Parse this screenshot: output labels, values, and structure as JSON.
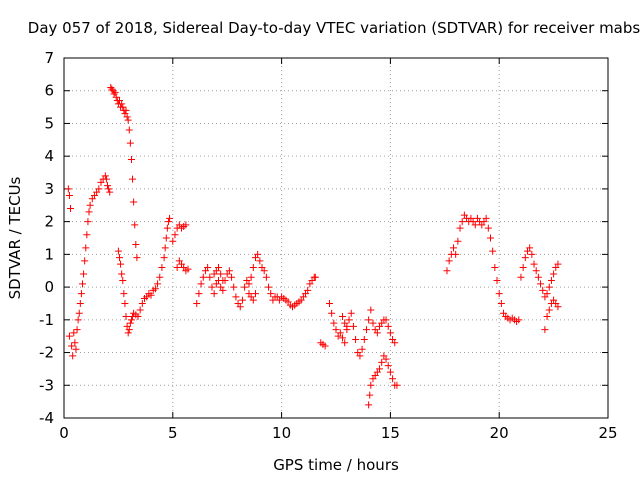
{
  "chart_data": {
    "type": "scatter",
    "title": "Day 057 of 2018, Sidereal Day-to-day VTEC variation (SDTVAR) for receiver mabs",
    "xlabel": "GPS time / hours",
    "ylabel": "SDTVAR / TECUs",
    "xlim": [
      0,
      25
    ],
    "ylim": [
      -4,
      7
    ],
    "xticks": [
      0,
      5,
      10,
      15,
      20,
      25
    ],
    "yticks": [
      -4,
      -3,
      -2,
      -1,
      0,
      1,
      2,
      3,
      4,
      5,
      6,
      7
    ],
    "grid": true,
    "marker": "+",
    "series": [
      {
        "name": "SDTVAR",
        "color": "#ff0000",
        "points": [
          [
            0.2,
            3.0
          ],
          [
            0.25,
            2.8
          ],
          [
            0.3,
            2.4
          ],
          [
            0.25,
            -1.5
          ],
          [
            0.35,
            -1.8
          ],
          [
            0.4,
            -2.1
          ],
          [
            0.45,
            -1.4
          ],
          [
            0.5,
            -1.7
          ],
          [
            0.55,
            -1.9
          ],
          [
            0.6,
            -1.3
          ],
          [
            0.65,
            -1.0
          ],
          [
            0.7,
            -0.8
          ],
          [
            0.75,
            -0.5
          ],
          [
            0.8,
            -0.2
          ],
          [
            0.85,
            0.1
          ],
          [
            0.9,
            0.4
          ],
          [
            0.95,
            0.8
          ],
          [
            1.0,
            1.2
          ],
          [
            1.05,
            1.6
          ],
          [
            1.1,
            2.0
          ],
          [
            1.15,
            2.3
          ],
          [
            1.2,
            2.5
          ],
          [
            1.3,
            2.7
          ],
          [
            1.4,
            2.8
          ],
          [
            1.5,
            2.9
          ],
          [
            1.6,
            3.0
          ],
          [
            1.7,
            3.2
          ],
          [
            1.8,
            3.3
          ],
          [
            1.9,
            3.4
          ],
          [
            1.95,
            3.3
          ],
          [
            2.0,
            3.1
          ],
          [
            2.05,
            3.0
          ],
          [
            2.1,
            2.9
          ],
          [
            2.15,
            6.1
          ],
          [
            2.2,
            6.05
          ],
          [
            2.25,
            6.0
          ],
          [
            2.3,
            5.9
          ],
          [
            2.35,
            5.95
          ],
          [
            2.4,
            5.8
          ],
          [
            2.45,
            5.7
          ],
          [
            2.5,
            5.6
          ],
          [
            2.55,
            5.7
          ],
          [
            2.6,
            5.5
          ],
          [
            2.65,
            5.6
          ],
          [
            2.7,
            5.5
          ],
          [
            2.75,
            5.4
          ],
          [
            2.8,
            5.3
          ],
          [
            2.85,
            5.4
          ],
          [
            2.9,
            5.2
          ],
          [
            2.95,
            5.1
          ],
          [
            3.0,
            4.8
          ],
          [
            3.05,
            4.4
          ],
          [
            3.1,
            3.9
          ],
          [
            3.15,
            3.3
          ],
          [
            3.2,
            2.6
          ],
          [
            3.25,
            1.9
          ],
          [
            3.3,
            1.3
          ],
          [
            3.35,
            0.9
          ],
          [
            2.5,
            1.1
          ],
          [
            2.55,
            0.9
          ],
          [
            2.6,
            0.7
          ],
          [
            2.65,
            0.4
          ],
          [
            2.7,
            0.2
          ],
          [
            2.75,
            -0.2
          ],
          [
            2.8,
            -0.5
          ],
          [
            2.85,
            -0.9
          ],
          [
            2.9,
            -1.2
          ],
          [
            2.95,
            -1.4
          ],
          [
            3.0,
            -1.3
          ],
          [
            3.05,
            -1.1
          ],
          [
            3.1,
            -1.0
          ],
          [
            3.15,
            -0.9
          ],
          [
            3.2,
            -0.8
          ],
          [
            3.3,
            -0.85
          ],
          [
            3.4,
            -0.9
          ],
          [
            3.5,
            -0.7
          ],
          [
            3.6,
            -0.5
          ],
          [
            3.7,
            -0.35
          ],
          [
            3.8,
            -0.3
          ],
          [
            3.9,
            -0.2
          ],
          [
            4.0,
            -0.25
          ],
          [
            4.1,
            -0.1
          ],
          [
            4.2,
            -0.05
          ],
          [
            4.3,
            0.1
          ],
          [
            4.4,
            0.3
          ],
          [
            4.5,
            0.6
          ],
          [
            4.6,
            0.9
          ],
          [
            4.65,
            1.2
          ],
          [
            4.7,
            1.5
          ],
          [
            4.75,
            1.8
          ],
          [
            4.8,
            2.0
          ],
          [
            4.85,
            2.1
          ],
          [
            5.0,
            1.4
          ],
          [
            5.1,
            1.6
          ],
          [
            5.2,
            1.8
          ],
          [
            5.3,
            1.9
          ],
          [
            5.4,
            1.8
          ],
          [
            5.5,
            1.85
          ],
          [
            5.6,
            1.9
          ],
          [
            5.2,
            0.6
          ],
          [
            5.3,
            0.8
          ],
          [
            5.4,
            0.7
          ],
          [
            5.5,
            0.6
          ],
          [
            5.6,
            0.5
          ],
          [
            5.7,
            0.55
          ],
          [
            6.1,
            -0.5
          ],
          [
            6.2,
            -0.2
          ],
          [
            6.3,
            0.1
          ],
          [
            6.4,
            0.3
          ],
          [
            6.5,
            0.5
          ],
          [
            6.6,
            0.6
          ],
          [
            6.7,
            0.3
          ],
          [
            6.8,
            0.0
          ],
          [
            6.9,
            -0.2
          ],
          [
            7.0,
            0.1
          ],
          [
            7.1,
            0.2
          ],
          [
            7.2,
            0.0
          ],
          [
            7.3,
            -0.1
          ],
          [
            7.4,
            0.2
          ],
          [
            7.5,
            0.4
          ],
          [
            7.6,
            0.5
          ],
          [
            7.7,
            0.3
          ],
          [
            7.8,
            0.0
          ],
          [
            7.9,
            -0.3
          ],
          [
            8.0,
            -0.5
          ],
          [
            8.1,
            -0.6
          ],
          [
            8.2,
            -0.4
          ],
          [
            8.3,
            0.0
          ],
          [
            8.4,
            0.2
          ],
          [
            8.5,
            0.1
          ],
          [
            8.6,
            0.3
          ],
          [
            8.7,
            0.6
          ],
          [
            8.8,
            0.9
          ],
          [
            8.9,
            1.0
          ],
          [
            9.0,
            0.8
          ],
          [
            9.1,
            0.6
          ],
          [
            9.2,
            0.5
          ],
          [
            9.3,
            0.3
          ],
          [
            9.4,
            0.0
          ],
          [
            9.5,
            -0.2
          ],
          [
            9.6,
            -0.4
          ],
          [
            9.7,
            -0.3
          ],
          [
            9.8,
            -0.3
          ],
          [
            9.9,
            -0.4
          ],
          [
            10.0,
            -0.3
          ],
          [
            10.1,
            -0.35
          ],
          [
            10.2,
            -0.4
          ],
          [
            10.3,
            -0.45
          ],
          [
            10.4,
            -0.55
          ],
          [
            10.5,
            -0.6
          ],
          [
            10.6,
            -0.55
          ],
          [
            10.7,
            -0.5
          ],
          [
            10.8,
            -0.45
          ],
          [
            10.9,
            -0.4
          ],
          [
            11.0,
            -0.3
          ],
          [
            11.1,
            -0.2
          ],
          [
            11.2,
            -0.1
          ],
          [
            11.3,
            0.1
          ],
          [
            11.4,
            0.2
          ],
          [
            11.5,
            0.3
          ],
          [
            11.55,
            0.3
          ],
          [
            6.9,
            0.4
          ],
          [
            7.0,
            0.5
          ],
          [
            7.1,
            0.6
          ],
          [
            7.2,
            0.4
          ],
          [
            7.3,
            0.2
          ],
          [
            8.5,
            -0.2
          ],
          [
            8.6,
            -0.3
          ],
          [
            8.7,
            -0.4
          ],
          [
            8.8,
            -0.2
          ],
          [
            11.8,
            -1.7
          ],
          [
            11.9,
            -1.75
          ],
          [
            12.0,
            -1.8
          ],
          [
            12.2,
            -0.5
          ],
          [
            12.3,
            -0.8
          ],
          [
            12.4,
            -1.1
          ],
          [
            12.5,
            -1.3
          ],
          [
            12.6,
            -1.5
          ],
          [
            12.7,
            -1.4
          ],
          [
            12.8,
            -1.55
          ],
          [
            12.9,
            -1.7
          ],
          [
            13.0,
            -1.3
          ],
          [
            13.1,
            -1.0
          ],
          [
            13.2,
            -0.8
          ],
          [
            13.3,
            -1.2
          ],
          [
            13.4,
            -1.6
          ],
          [
            13.5,
            -2.0
          ],
          [
            13.6,
            -2.1
          ],
          [
            13.7,
            -1.9
          ],
          [
            13.8,
            -1.6
          ],
          [
            13.9,
            -1.3
          ],
          [
            14.0,
            -1.0
          ],
          [
            14.1,
            -0.7
          ],
          [
            14.2,
            -1.1
          ],
          [
            14.3,
            -1.3
          ],
          [
            14.4,
            -1.4
          ],
          [
            14.5,
            -1.2
          ],
          [
            14.6,
            -1.1
          ],
          [
            14.7,
            -1.0
          ],
          [
            14.8,
            -1.0
          ],
          [
            14.9,
            -1.2
          ],
          [
            15.0,
            -1.4
          ],
          [
            15.1,
            -1.6
          ],
          [
            15.2,
            -1.7
          ],
          [
            14.0,
            -3.6
          ],
          [
            14.05,
            -3.3
          ],
          [
            14.1,
            -3.0
          ],
          [
            14.2,
            -2.8
          ],
          [
            14.3,
            -2.7
          ],
          [
            14.4,
            -2.6
          ],
          [
            14.5,
            -2.5
          ],
          [
            14.6,
            -2.3
          ],
          [
            14.7,
            -2.1
          ],
          [
            14.8,
            -2.2
          ],
          [
            14.9,
            -2.4
          ],
          [
            15.0,
            -2.6
          ],
          [
            15.1,
            -2.8
          ],
          [
            15.2,
            -3.0
          ],
          [
            15.3,
            -3.0
          ],
          [
            12.8,
            -0.9
          ],
          [
            12.9,
            -1.1
          ],
          [
            13.0,
            -1.2
          ],
          [
            17.6,
            0.5
          ],
          [
            17.7,
            0.8
          ],
          [
            17.8,
            1.0
          ],
          [
            17.9,
            1.2
          ],
          [
            18.0,
            1.0
          ],
          [
            18.1,
            1.4
          ],
          [
            18.2,
            1.8
          ],
          [
            18.3,
            2.0
          ],
          [
            18.4,
            2.2
          ],
          [
            18.5,
            2.1
          ],
          [
            18.6,
            2.0
          ],
          [
            18.7,
            2.1
          ],
          [
            18.8,
            2.0
          ],
          [
            18.9,
            1.9
          ],
          [
            19.0,
            2.1
          ],
          [
            19.1,
            2.0
          ],
          [
            19.2,
            1.9
          ],
          [
            19.3,
            2.0
          ],
          [
            19.4,
            2.1
          ],
          [
            19.5,
            1.8
          ],
          [
            19.6,
            1.5
          ],
          [
            19.7,
            1.1
          ],
          [
            19.8,
            0.6
          ],
          [
            19.9,
            0.2
          ],
          [
            20.0,
            -0.2
          ],
          [
            20.1,
            -0.5
          ],
          [
            20.2,
            -0.8
          ],
          [
            20.3,
            -0.9
          ],
          [
            20.4,
            -0.95
          ],
          [
            20.5,
            -1.0
          ],
          [
            20.6,
            -0.95
          ],
          [
            20.7,
            -1.0
          ],
          [
            20.8,
            -1.05
          ],
          [
            20.9,
            -1.0
          ],
          [
            21.0,
            0.3
          ],
          [
            21.1,
            0.6
          ],
          [
            21.2,
            0.9
          ],
          [
            21.3,
            1.1
          ],
          [
            21.4,
            1.2
          ],
          [
            21.5,
            1.0
          ],
          [
            21.6,
            0.7
          ],
          [
            21.7,
            0.5
          ],
          [
            21.8,
            0.3
          ],
          [
            21.9,
            0.1
          ],
          [
            22.0,
            -0.1
          ],
          [
            22.1,
            -0.3
          ],
          [
            22.2,
            -0.2
          ],
          [
            22.3,
            0.0
          ],
          [
            22.4,
            0.2
          ],
          [
            22.5,
            0.4
          ],
          [
            22.6,
            0.6
          ],
          [
            22.7,
            0.7
          ],
          [
            22.1,
            -1.3
          ],
          [
            22.2,
            -0.9
          ],
          [
            22.3,
            -0.7
          ],
          [
            22.4,
            -0.5
          ],
          [
            22.5,
            -0.4
          ],
          [
            22.6,
            -0.5
          ],
          [
            22.7,
            -0.6
          ]
        ]
      }
    ]
  }
}
